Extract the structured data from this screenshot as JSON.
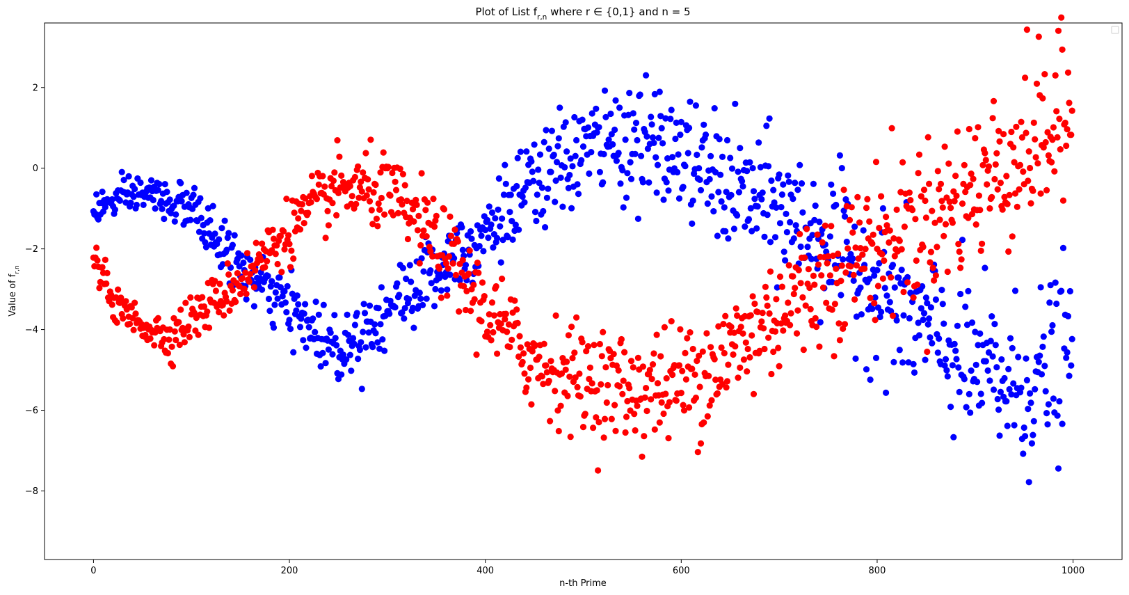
{
  "chart_data": {
    "type": "scatter",
    "title": "Plot of List f_{r,n} where r ∈ {0,1} and n = 5",
    "xlabel": "n-th Prime",
    "ylabel": "Value of f_{r,n}",
    "xlim": [
      -50,
      1050
    ],
    "ylim": [
      -9.7,
      3.6
    ],
    "xticks": [
      0,
      200,
      400,
      600,
      800,
      1000
    ],
    "yticks": [
      -8,
      -6,
      -4,
      -2,
      0,
      2
    ],
    "grid": false,
    "legend": "top-right (empty)",
    "n_points_per_series": 1000,
    "series": [
      {
        "color": "#0000ff",
        "approx_trend": [
          {
            "x": 0,
            "y": -1.0
          },
          {
            "x": 50,
            "y": -0.6
          },
          {
            "x": 100,
            "y": -1.0
          },
          {
            "x": 150,
            "y": -2.5
          },
          {
            "x": 200,
            "y": -3.5
          },
          {
            "x": 250,
            "y": -4.5
          },
          {
            "x": 300,
            "y": -3.5
          },
          {
            "x": 350,
            "y": -2.5
          },
          {
            "x": 400,
            "y": -1.5
          },
          {
            "x": 450,
            "y": -0.5
          },
          {
            "x": 500,
            "y": 0.5
          },
          {
            "x": 550,
            "y": 0.7
          },
          {
            "x": 600,
            "y": 0.3
          },
          {
            "x": 650,
            "y": -0.5
          },
          {
            "x": 700,
            "y": -1.0
          },
          {
            "x": 750,
            "y": -1.8
          },
          {
            "x": 800,
            "y": -3.0
          },
          {
            "x": 850,
            "y": -4.0
          },
          {
            "x": 900,
            "y": -5.0
          },
          {
            "x": 950,
            "y": -5.5
          },
          {
            "x": 1000,
            "y": -4.5
          }
        ]
      },
      {
        "color": "#ff0000",
        "approx_trend": [
          {
            "x": 0,
            "y": -2.2
          },
          {
            "x": 25,
            "y": -3.5
          },
          {
            "x": 75,
            "y": -4.2
          },
          {
            "x": 150,
            "y": -2.8
          },
          {
            "x": 200,
            "y": -1.5
          },
          {
            "x": 250,
            "y": -0.5
          },
          {
            "x": 300,
            "y": -0.6
          },
          {
            "x": 350,
            "y": -1.8
          },
          {
            "x": 400,
            "y": -3.5
          },
          {
            "x": 450,
            "y": -4.8
          },
          {
            "x": 500,
            "y": -5.2
          },
          {
            "x": 550,
            "y": -5.5
          },
          {
            "x": 600,
            "y": -5.3
          },
          {
            "x": 650,
            "y": -4.6
          },
          {
            "x": 700,
            "y": -3.5
          },
          {
            "x": 750,
            "y": -2.5
          },
          {
            "x": 800,
            "y": -1.8
          },
          {
            "x": 850,
            "y": -1.3
          },
          {
            "x": 900,
            "y": -0.5
          },
          {
            "x": 950,
            "y": 0.5
          },
          {
            "x": 1000,
            "y": 1.2
          }
        ]
      }
    ]
  }
}
